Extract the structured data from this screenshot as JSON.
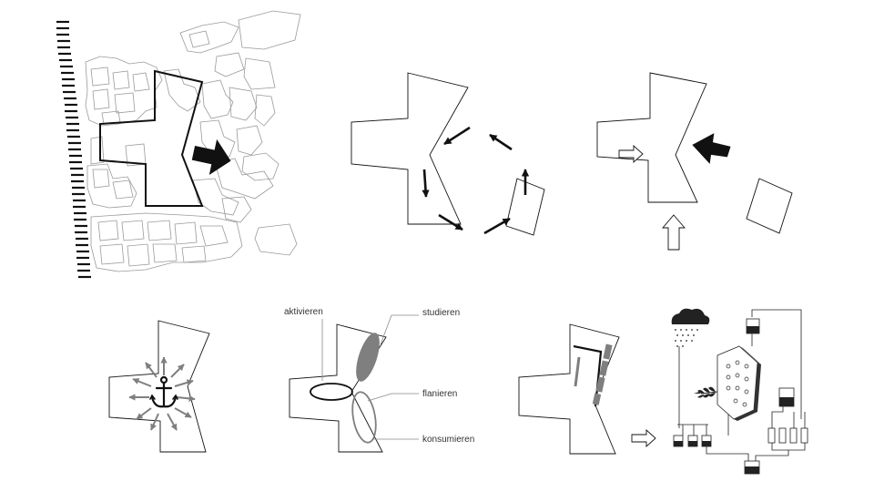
{
  "labels": {
    "activate": "aktivieren",
    "study": "studieren",
    "stroll": "flanieren",
    "consume": "konsumieren"
  },
  "colors": {
    "outline": "#1a1a1a",
    "building": "#9a9a9a",
    "gray_fill": "#7f7f7f",
    "leader": "#8a8a8a"
  },
  "icons": [
    "anchor-icon",
    "rain-cloud-icon",
    "leaf-icon",
    "water-tank-icon",
    "solar-panel-icon"
  ]
}
